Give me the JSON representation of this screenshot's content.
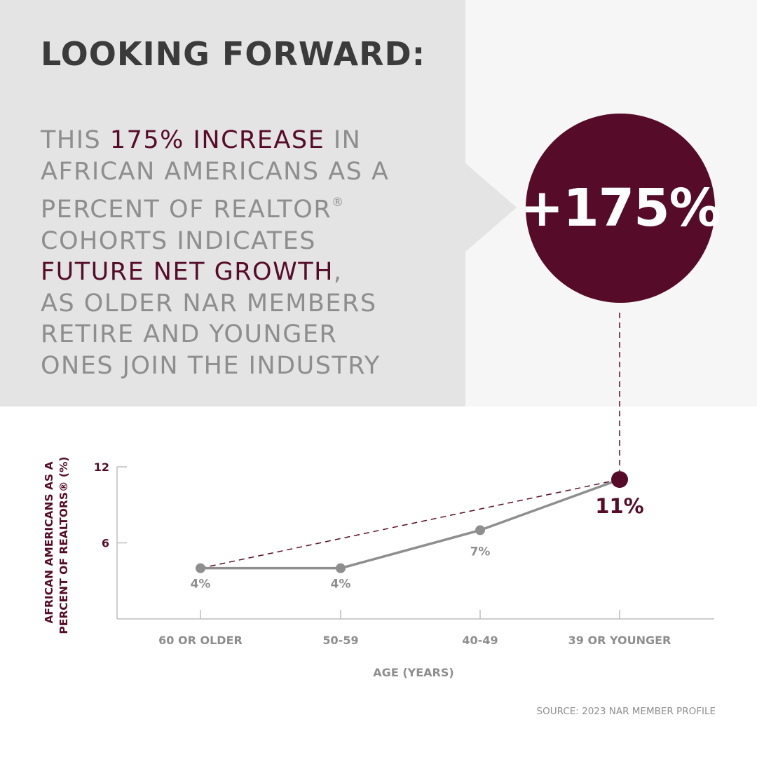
{
  "header": {
    "title": "LOOKING FORWARD:",
    "statement": {
      "l1_a": "THIS ",
      "l1_b": "175% INCREASE",
      "l1_c": " IN",
      "l2": "AFRICAN AMERICANS AS A",
      "l3": "PERCENT OF REALTOR",
      "l3_reg": "®",
      "l4": "COHORTS INDICATES",
      "l5_a": "FUTURE NET GROWTH",
      "l5_b": ",",
      "l6": "AS OLDER NAR MEMBERS",
      "l7": "RETIRE AND YOUNGER",
      "l8": "ONES JOIN THE INDUSTRY"
    }
  },
  "callout": {
    "value": "+175%"
  },
  "colors": {
    "accent": "#560c29",
    "line_gray": "#8e8e8e",
    "text_dark": "#3b3b3b"
  },
  "chart_data": {
    "type": "line",
    "categories": [
      "60 OR OLDER",
      "50-59",
      "40-49",
      "39 OR YOUNGER"
    ],
    "values": [
      4,
      4,
      7,
      11
    ],
    "data_labels": [
      "4%",
      "4%",
      "7%",
      "11%"
    ],
    "highlight_index": 3,
    "trend_from_to": [
      0,
      3
    ],
    "ylabel_lines": [
      "AFRICAN AMERICANS AS A",
      "PERCENT OF REALTORS® (%)"
    ],
    "xlabel": "AGE (YEARS)",
    "yticks": [
      6,
      12
    ],
    "ylim": [
      0,
      12
    ]
  },
  "source": "SOURCE: 2023 NAR MEMBER PROFILE"
}
